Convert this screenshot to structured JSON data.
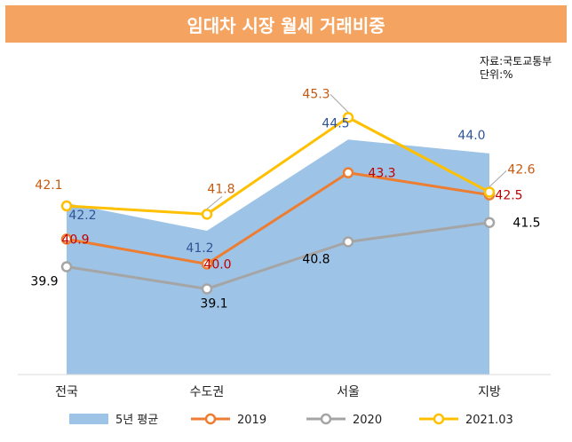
{
  "header": {
    "title": "임대차 시장 월세 거래비중"
  },
  "source": {
    "line1": "자료:국토교통부",
    "line2": "단위:%"
  },
  "chart_data": {
    "type": "line",
    "categories": [
      "전국",
      "수도권",
      "서울",
      "지방"
    ],
    "series": [
      {
        "name": "5년 평균",
        "type": "area",
        "values": [
          42.2,
          41.2,
          44.5,
          44.0
        ],
        "color": "#9DC3E6",
        "label_color": "#2F5597"
      },
      {
        "name": "2019",
        "type": "line",
        "values": [
          40.9,
          40.0,
          43.3,
          42.5
        ],
        "color": "#ED7D31",
        "label_color": "#C00000"
      },
      {
        "name": "2020",
        "type": "line",
        "values": [
          39.9,
          39.1,
          40.8,
          41.5
        ],
        "color": "#A5A5A5",
        "label_color": "#000000"
      },
      {
        "name": "2021.03",
        "type": "line",
        "values": [
          42.1,
          41.8,
          45.3,
          42.6
        ],
        "color": "#FFC000",
        "label_color": "#C55A11"
      }
    ],
    "labels": {
      "5년 평균": [
        "42.2",
        "41.2",
        "44.5",
        "44.0"
      ],
      "2019": [
        "40.9",
        "40.0",
        "43.3",
        "42.5"
      ],
      "2020": [
        "39.9",
        "39.1",
        "40.8",
        "41.5"
      ],
      "2021.03": [
        "42.1",
        "41.8",
        "45.3",
        "42.6"
      ]
    },
    "ylim": [
      36.0,
      46.5
    ],
    "grid": false,
    "legend": "bottom"
  }
}
